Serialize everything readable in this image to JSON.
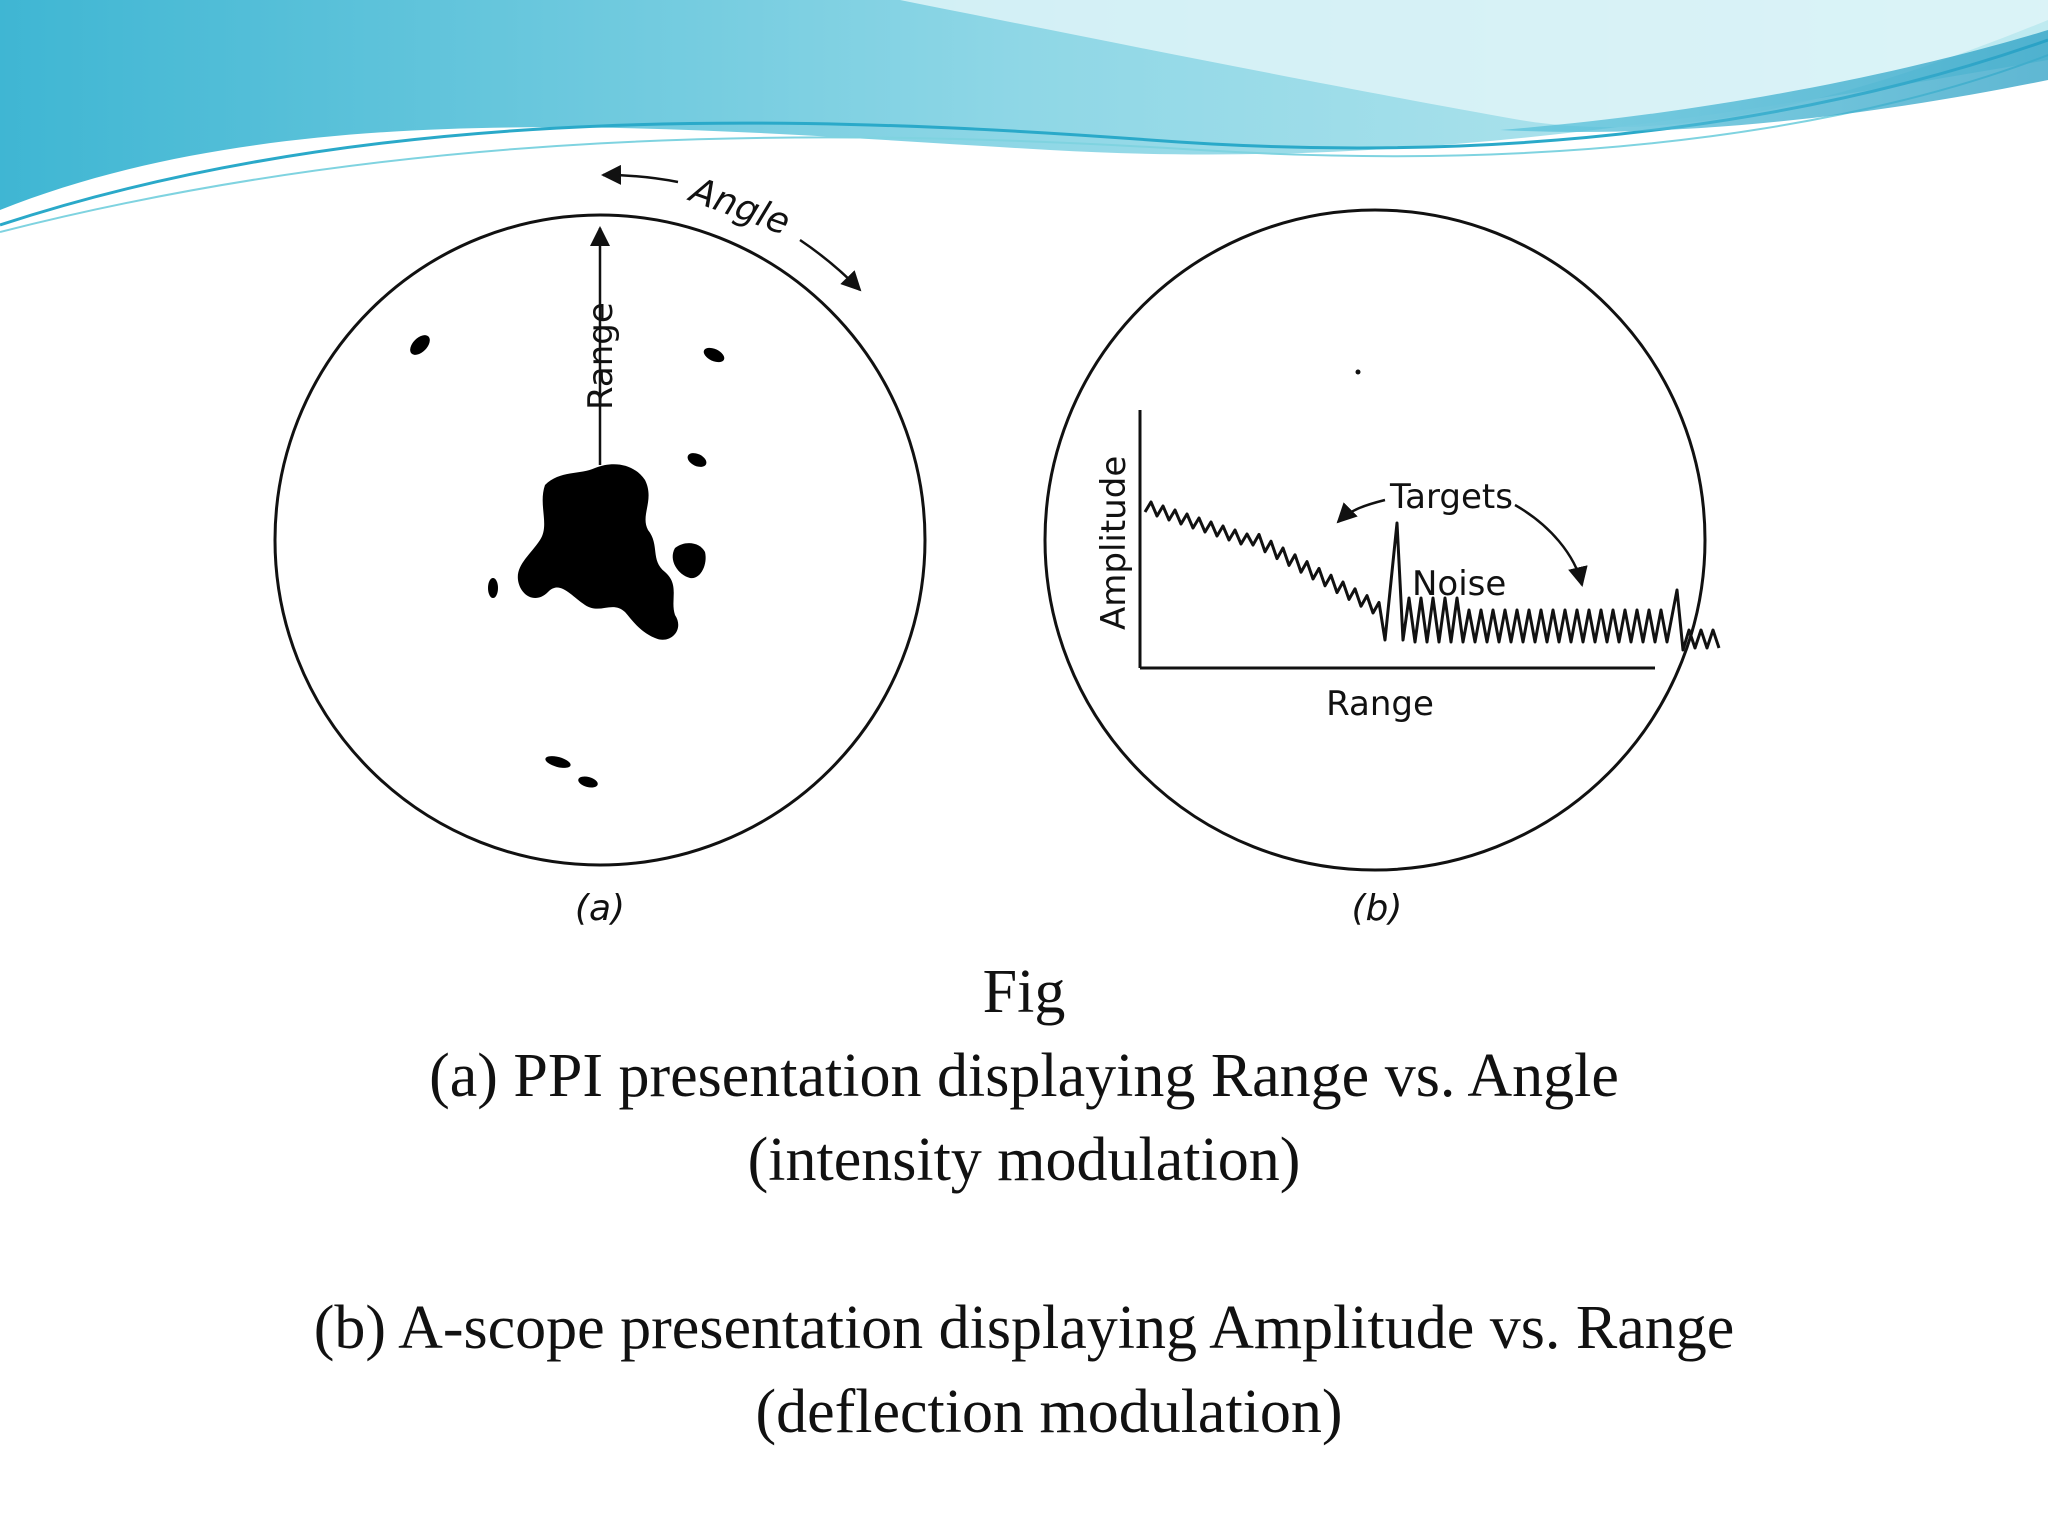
{
  "banner": {
    "colors": {
      "light": "#b7e9ef",
      "mid": "#7fd3e0",
      "deep": "#2aa9c9"
    }
  },
  "panel_a": {
    "angle_label": "Angle",
    "range_label": "Range",
    "panel_label": "(a)"
  },
  "panel_b": {
    "amplitude_label": "Amplitude",
    "range_label": "Range",
    "targets_label": "Targets",
    "noise_label": "Noise",
    "panel_label": "(b)"
  },
  "caption": {
    "fig": "Fig",
    "line_a1": "(a) PPI presentation displaying Range vs. Angle",
    "line_a2": "(intensity modulation)",
    "line_b1": "(b) A-scope presentation displaying Amplitude vs. Range",
    "line_b2": "(deflection modulation)"
  }
}
